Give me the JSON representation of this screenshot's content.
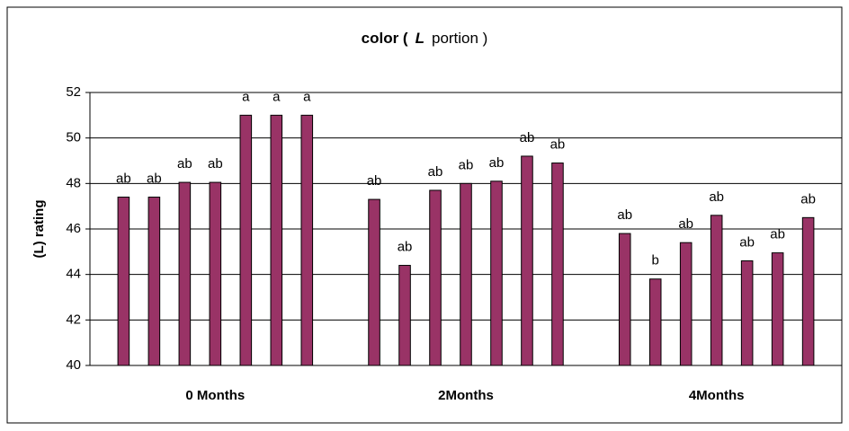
{
  "chart_data": {
    "type": "bar",
    "title": {
      "before": "color (",
      "italic": "L",
      "after": "portion )"
    },
    "ylabel": "(L) rating",
    "categories": [
      "0 Months",
      "2Months",
      "4Months"
    ],
    "color": "#993366",
    "ylim": [
      40,
      52
    ],
    "yticks": [
      40,
      42,
      44,
      46,
      48,
      50,
      52
    ],
    "grid": true,
    "series": [
      {
        "values": [
          47.4,
          47.3,
          45.8
        ],
        "value_labels": [
          "ab",
          "ab",
          "ab"
        ]
      },
      {
        "values": [
          47.4,
          44.4,
          43.8
        ],
        "value_labels": [
          "ab",
          "ab",
          "b"
        ]
      },
      {
        "values": [
          48.05,
          47.7,
          45.4
        ],
        "value_labels": [
          "ab",
          "ab",
          "ab"
        ]
      },
      {
        "values": [
          48.05,
          48.0,
          46.6
        ],
        "value_labels": [
          "ab",
          "ab",
          "ab"
        ]
      },
      {
        "values": [
          51.0,
          48.1,
          44.6
        ],
        "value_labels": [
          "a",
          "ab",
          "ab"
        ]
      },
      {
        "values": [
          51.0,
          49.2,
          44.95
        ],
        "value_labels": [
          "a",
          "ab",
          "ab"
        ]
      },
      {
        "values": [
          51.0,
          48.9,
          46.5
        ],
        "value_labels": [
          "a",
          "ab",
          "ab"
        ]
      }
    ]
  }
}
